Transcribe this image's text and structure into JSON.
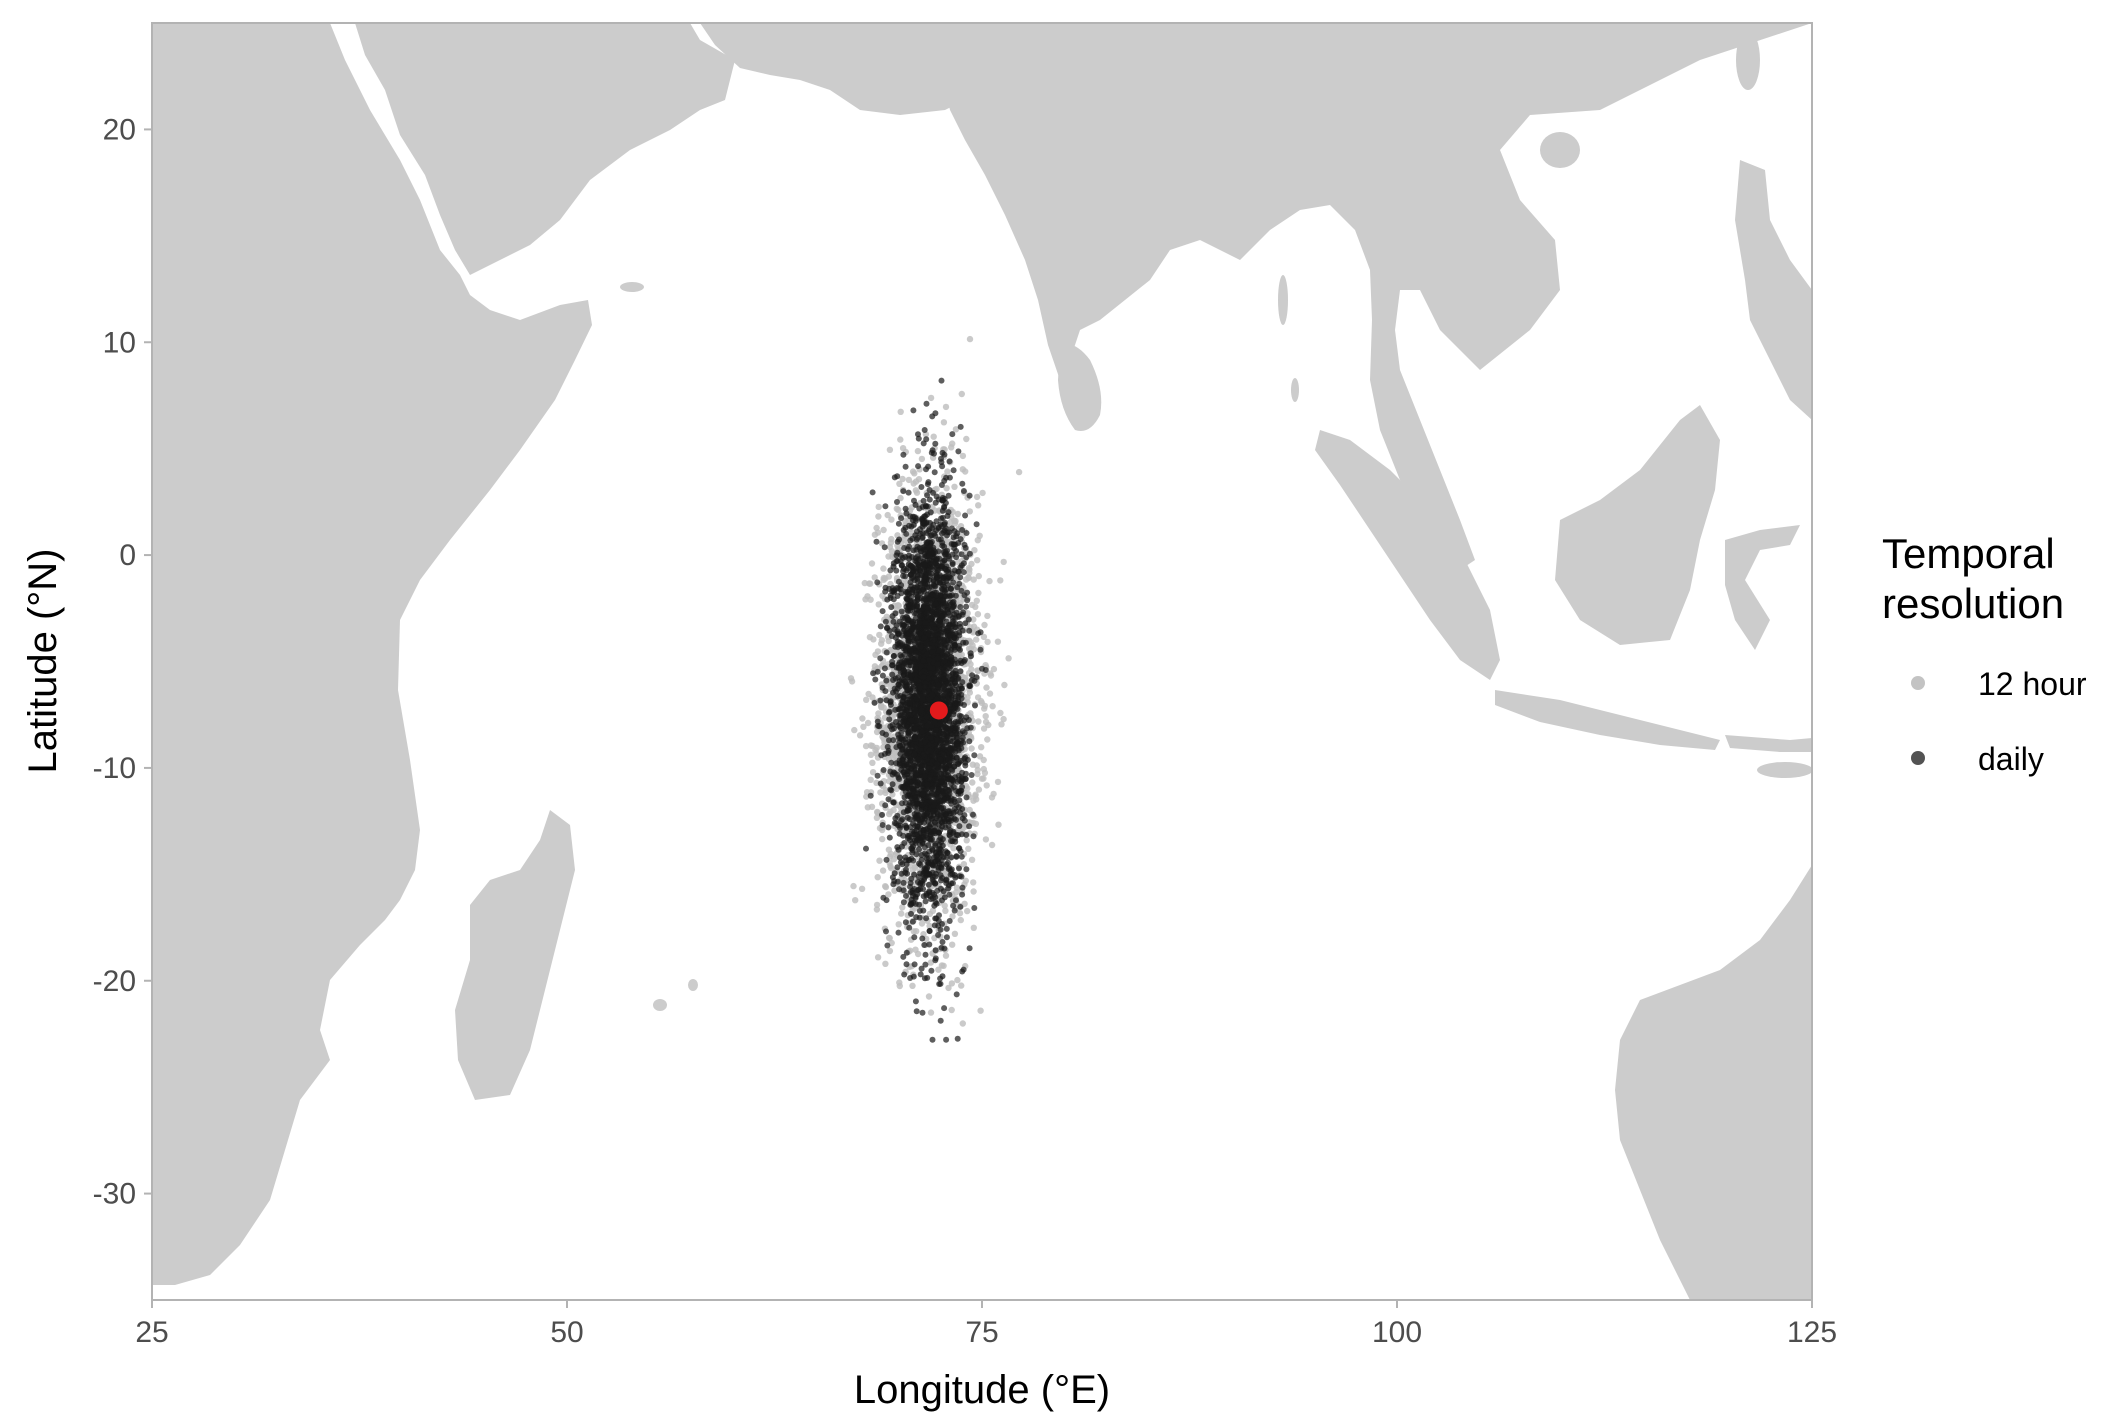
{
  "chart_data": {
    "type": "scatter",
    "xlabel": "Longitude (°E)",
    "ylabel": "Latitude (°N)",
    "xlim": [
      25,
      125
    ],
    "ylim": [
      -35,
      25
    ],
    "x_ticks": [
      25,
      50,
      75,
      100,
      125
    ],
    "y_ticks": [
      -30,
      -20,
      -10,
      0,
      10,
      20
    ],
    "grid": false,
    "land_color": "#cccccc",
    "background_color": "#ffffff",
    "legend": {
      "title_line1": "Temporal",
      "title_line2": "resolution",
      "placement": "right",
      "entries": [
        {
          "label": "12 hour",
          "color": "#bdbdbd"
        },
        {
          "label": "daily",
          "color": "#1a1a1a"
        }
      ]
    },
    "series": [
      {
        "name": "12 hour",
        "color": "#bdbdbd",
        "cloud": {
          "center_lon": 71.8,
          "center_lat": -7.0,
          "lon_extent": [
            67,
            78
          ],
          "lat_extent": [
            -23,
            12
          ]
        }
      },
      {
        "name": "daily",
        "color": "#1a1a1a",
        "cloud": {
          "center_lon": 71.8,
          "center_lat": -7.0,
          "lon_extent": [
            67,
            77
          ],
          "lat_extent": [
            -23,
            12
          ]
        }
      }
    ],
    "highlight_point": {
      "lon": 72.4,
      "lat": -7.3,
      "color": "#e31a1c"
    }
  }
}
